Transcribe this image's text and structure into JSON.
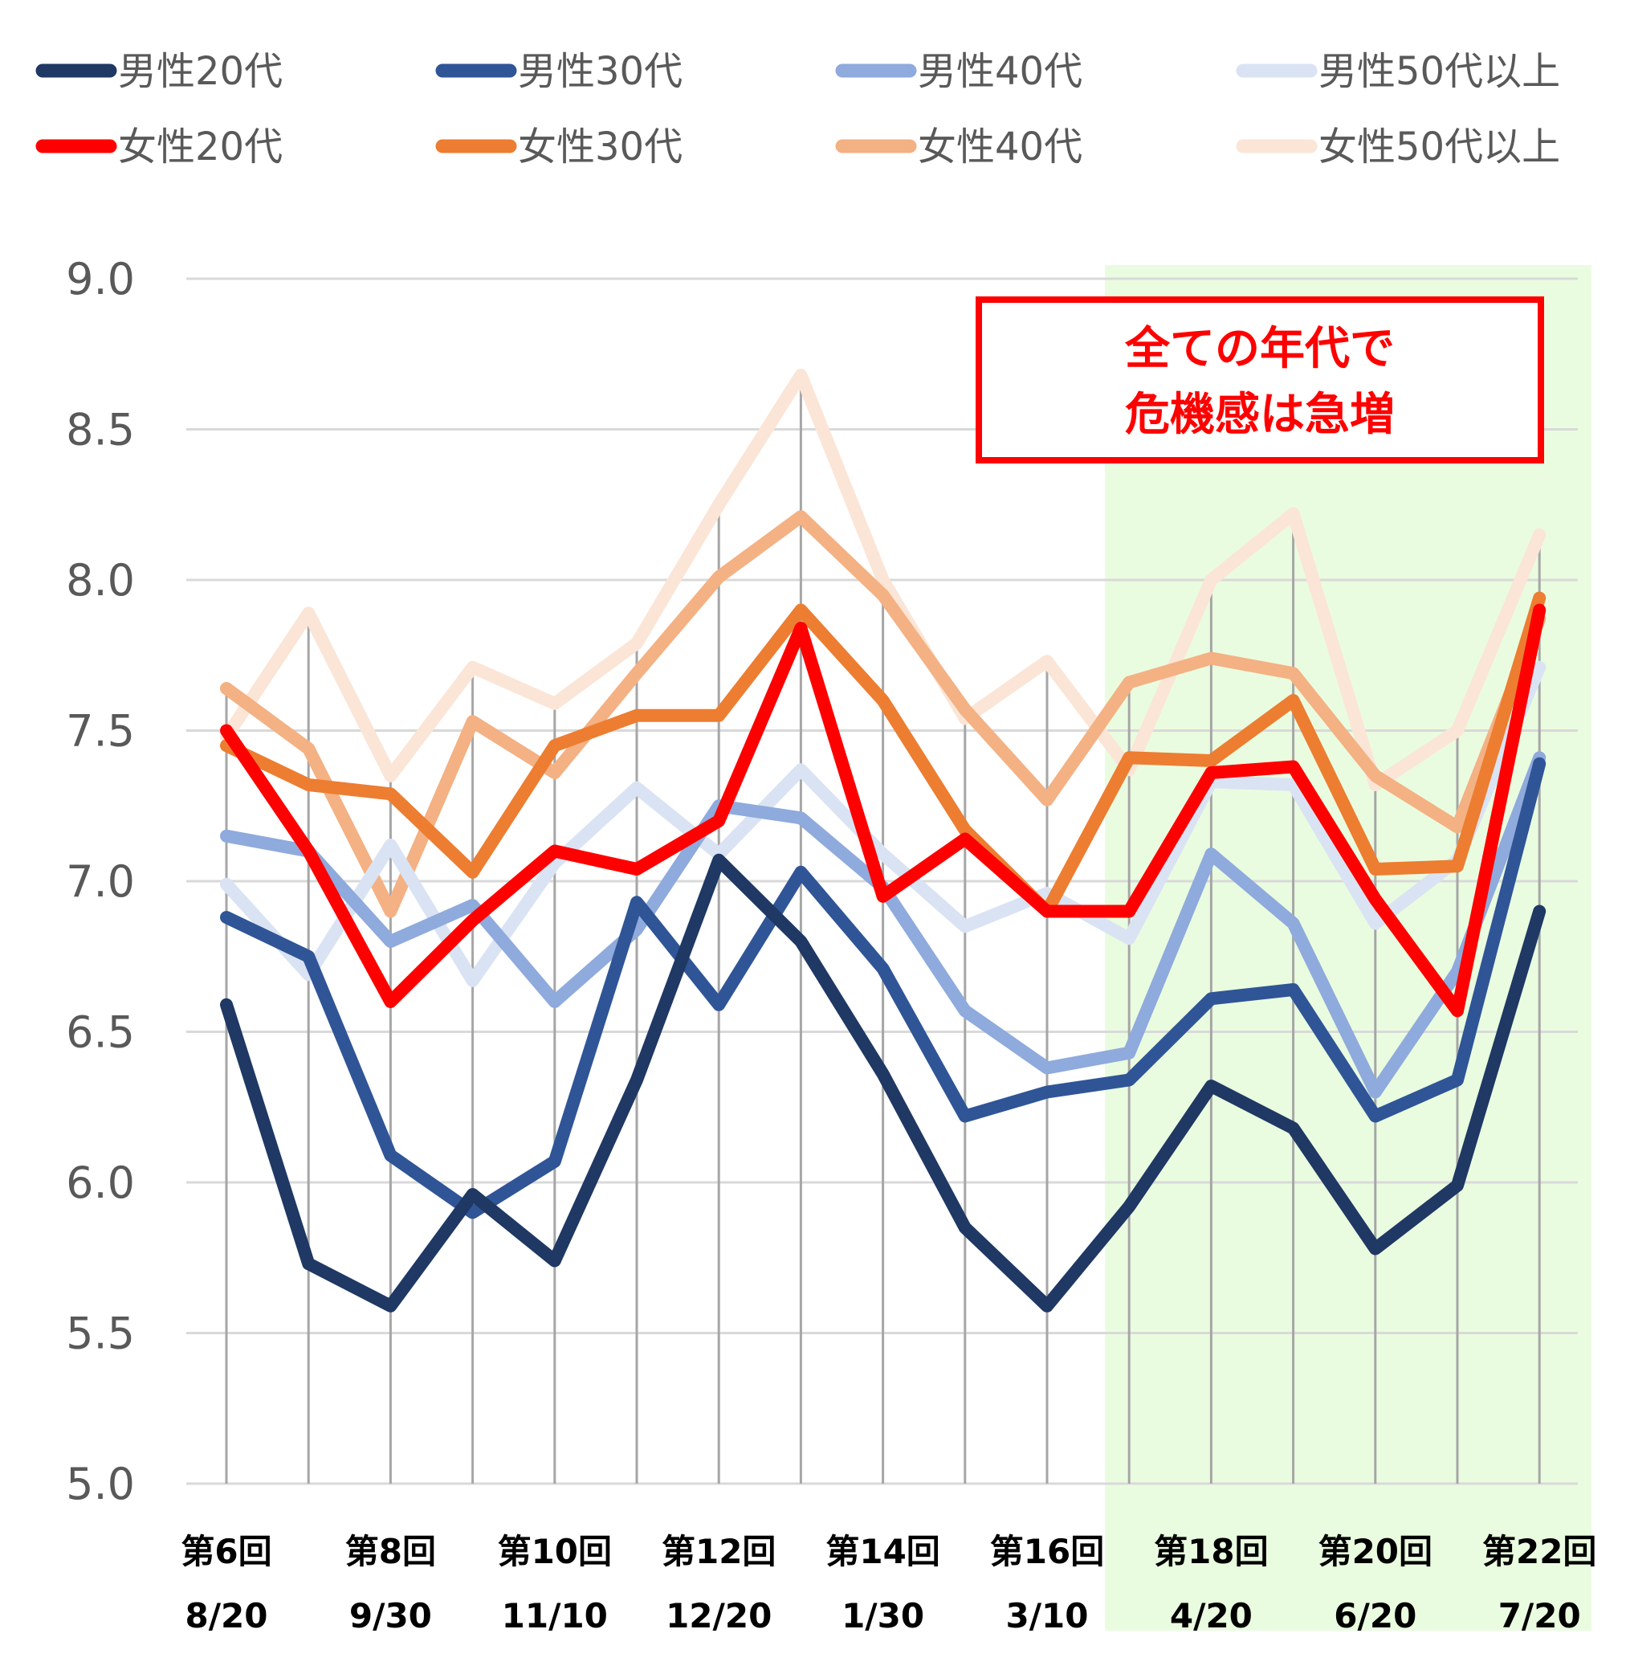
{
  "chart_data": {
    "type": "line",
    "ylim": [
      5.0,
      9.0
    ],
    "yticks": [
      "9.0",
      "8.5",
      "8.0",
      "7.5",
      "7.0",
      "6.5",
      "6.0",
      "5.5",
      "5.0"
    ],
    "x_label_rounds": [
      "第6回",
      "第8回",
      "第10回",
      "第12回",
      "第14回",
      "第16回",
      "第18回",
      "第20回",
      "第22回"
    ],
    "x_label_dates": [
      "8/20",
      "9/30",
      "11/10",
      "12/20",
      "1/30",
      "3/10",
      "4/20",
      "6/20",
      "7/20"
    ],
    "x_label_positions": [
      6,
      8,
      10,
      12,
      14,
      16,
      18,
      20,
      22
    ],
    "x": [
      6,
      7,
      8,
      9,
      10,
      11,
      12,
      13,
      14,
      15,
      16,
      17,
      18,
      19,
      20,
      21,
      22
    ],
    "highlight_from_round": 17,
    "highlight_color": "#eafce0",
    "grid": true,
    "legend_position": "top",
    "annotation": {
      "lines": [
        "全ての年代で",
        "危機感は急増"
      ],
      "color": "#ff0000"
    },
    "series": [
      {
        "name": "男性20代",
        "color": "#1f3864",
        "values": [
          6.59,
          5.73,
          5.59,
          5.96,
          5.74,
          6.34,
          7.07,
          6.8,
          6.36,
          5.85,
          5.59,
          5.92,
          6.32,
          6.18,
          5.78,
          5.99,
          6.9
        ]
      },
      {
        "name": "男性30代",
        "color": "#2f5597",
        "values": [
          6.88,
          6.75,
          6.09,
          5.9,
          6.07,
          6.93,
          6.59,
          7.03,
          6.71,
          6.22,
          6.3,
          6.34,
          6.61,
          6.64,
          6.22,
          6.34,
          7.39
        ]
      },
      {
        "name": "男性40代",
        "color": "#8faadc",
        "values": [
          7.15,
          7.1,
          6.8,
          6.92,
          6.6,
          6.84,
          7.25,
          7.21,
          6.98,
          6.57,
          6.38,
          6.43,
          7.09,
          6.86,
          6.3,
          6.7,
          7.41
        ]
      },
      {
        "name": "男性50代以上",
        "color": "#dae3f3",
        "values": [
          6.99,
          6.69,
          7.12,
          6.67,
          7.06,
          7.31,
          7.09,
          7.37,
          7.09,
          6.85,
          6.96,
          6.81,
          7.33,
          7.32,
          6.86,
          7.07,
          7.71
        ]
      },
      {
        "name": "女性20代",
        "color": "#ff0000",
        "values": [
          7.5,
          7.1,
          6.6,
          6.87,
          7.1,
          7.04,
          7.2,
          7.84,
          6.95,
          7.14,
          6.9,
          6.9,
          7.36,
          7.38,
          6.94,
          6.57,
          7.9
        ]
      },
      {
        "name": "女性30代",
        "color": "#ed7d31",
        "values": [
          7.45,
          7.32,
          7.29,
          7.03,
          7.45,
          7.55,
          7.55,
          7.9,
          7.6,
          7.17,
          6.9,
          7.41,
          7.4,
          7.6,
          7.04,
          7.05,
          7.94
        ]
      },
      {
        "name": "女性40代",
        "color": "#f4b183",
        "values": [
          7.64,
          7.44,
          6.9,
          7.53,
          7.36,
          7.69,
          8.01,
          8.21,
          7.95,
          7.57,
          7.27,
          7.66,
          7.74,
          7.69,
          7.35,
          7.18,
          7.87
        ]
      },
      {
        "name": "女性50代以上",
        "color": "#fbe5d6",
        "values": [
          7.48,
          7.89,
          7.35,
          7.71,
          7.59,
          7.79,
          8.25,
          8.68,
          8.0,
          7.54,
          7.73,
          7.37,
          8.0,
          8.22,
          7.32,
          7.5,
          8.15
        ]
      }
    ]
  }
}
